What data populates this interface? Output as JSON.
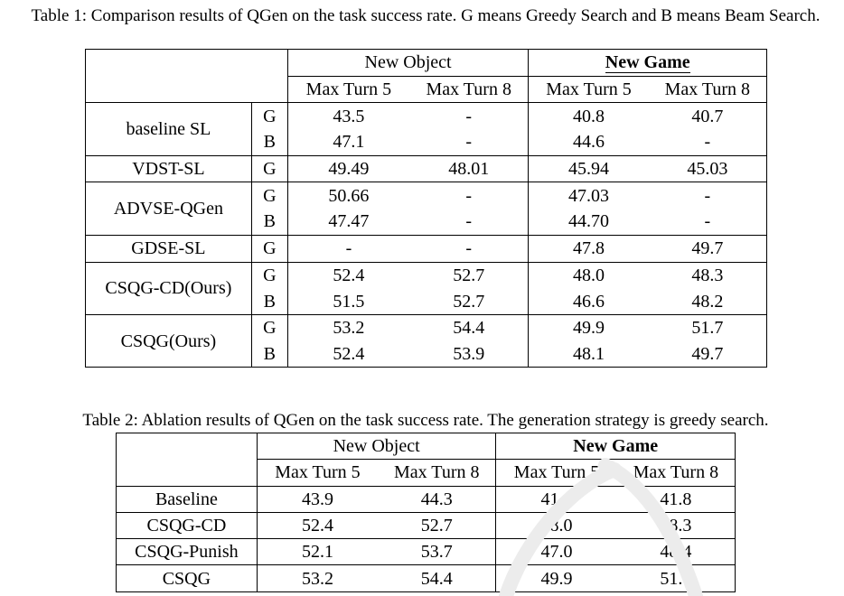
{
  "table1": {
    "caption": "Table 1: Comparison results of QGen on the task success rate. G means Greedy Search and B means Beam Search.",
    "groups": [
      "New Object",
      "New Game"
    ],
    "subheaders": [
      "Max Turn 5",
      "Max Turn 8",
      "Max Turn 5",
      "Max Turn 8"
    ],
    "rows": [
      {
        "method": "baseline SL",
        "strategy": "G",
        "values": [
          "43.5",
          "-",
          "40.8",
          "40.7"
        ]
      },
      {
        "method": "",
        "strategy": "B",
        "values": [
          "47.1",
          "-",
          "44.6",
          "-"
        ]
      },
      {
        "method": "VDST-SL",
        "strategy": "G",
        "values": [
          "49.49",
          "48.01",
          "45.94",
          "45.03"
        ]
      },
      {
        "method": "ADVSE-QGen",
        "strategy": "G",
        "values": [
          "50.66",
          "-",
          "47.03",
          "-"
        ]
      },
      {
        "method": "",
        "strategy": "B",
        "values": [
          "47.47",
          "-",
          "44.70",
          "-"
        ]
      },
      {
        "method": "GDSE-SL",
        "strategy": "G",
        "values": [
          "-",
          "-",
          "47.8",
          "49.7"
        ]
      },
      {
        "method": "CSQG-CD(Ours)",
        "strategy": "G",
        "values": [
          "52.4",
          "52.7",
          "48.0",
          "48.3"
        ]
      },
      {
        "method": "",
        "strategy": "B",
        "values": [
          "51.5",
          "52.7",
          "46.6",
          "48.2"
        ]
      },
      {
        "method": "CSQG(Ours)",
        "strategy": "G",
        "values": [
          "53.2",
          "54.4",
          "49.9",
          "51.7"
        ]
      },
      {
        "method": "",
        "strategy": "B",
        "values": [
          "52.4",
          "53.9",
          "48.1",
          "49.7"
        ]
      }
    ]
  },
  "table2": {
    "caption": "Table 2: Ablation results of QGen on the task success rate. The generation strategy is greedy search.",
    "groups": [
      "New Object",
      "New Game"
    ],
    "subheaders": [
      "Max Turn 5",
      "Max Turn 8",
      "Max Turn 5",
      "Max Turn 8"
    ],
    "rows": [
      {
        "method": "Baseline",
        "values": [
          "43.9",
          "44.3",
          "41.6",
          "41.8"
        ]
      },
      {
        "method": "CSQG-CD",
        "values": [
          "52.4",
          "52.7",
          "48.0",
          "48.3"
        ]
      },
      {
        "method": "CSQG-Punish",
        "values": [
          "52.1",
          "53.7",
          "47.0",
          "48.4"
        ]
      },
      {
        "method": "CSQG",
        "values": [
          "53.2",
          "54.4",
          "49.9",
          "51.7"
        ]
      }
    ]
  }
}
